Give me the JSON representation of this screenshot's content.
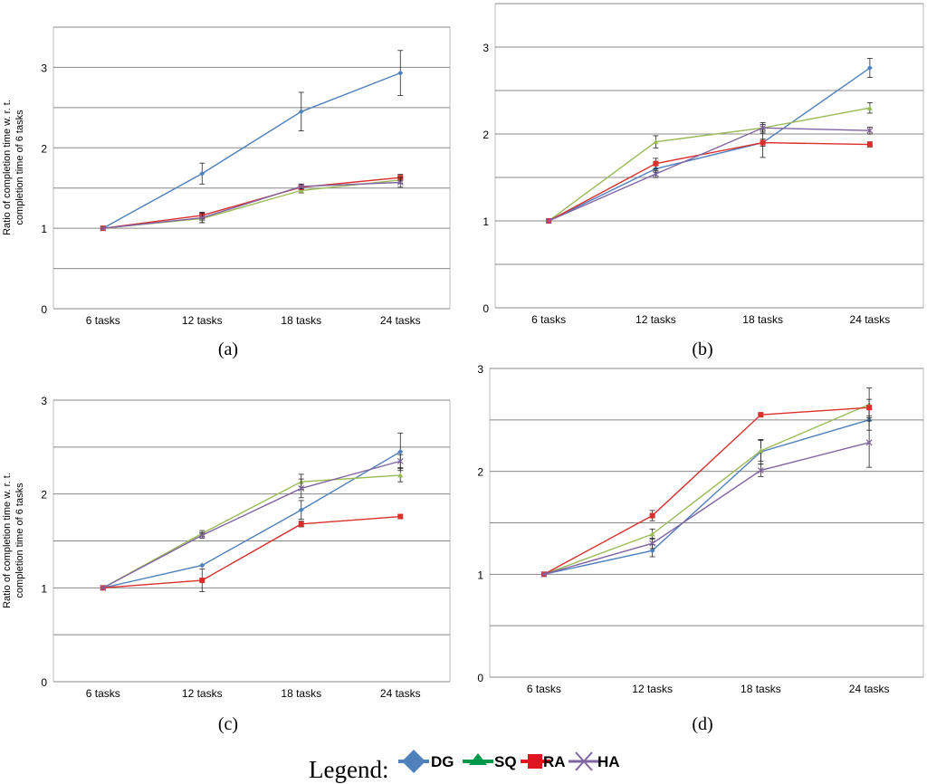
{
  "chart_data": [
    {
      "type": "line",
      "panel_label": "(a)",
      "ylabel_line1": "Ratio of completion time w. r. t.",
      "ylabel_line2": "completion time of 6 tasks",
      "categories": [
        "6 tasks",
        "12 tasks",
        "18 tasks",
        "24 tasks"
      ],
      "ylim": [
        0,
        3.5
      ],
      "yticks": [
        0,
        0.5,
        1,
        1.5,
        2,
        2.5,
        3,
        3.5
      ],
      "ytick_labels": [
        "0",
        "",
        "1",
        "",
        "2",
        "",
        "3",
        ""
      ],
      "series": [
        {
          "name": "DG",
          "values": [
            1.0,
            1.68,
            2.45,
            2.93
          ],
          "err": [
            0,
            0.13,
            0.24,
            0.28
          ]
        },
        {
          "name": "SQ",
          "values": [
            1.0,
            1.12,
            1.47,
            1.6
          ],
          "err": [
            0,
            0.05,
            0.03,
            0.04
          ]
        },
        {
          "name": "RA",
          "values": [
            1.0,
            1.16,
            1.51,
            1.63
          ],
          "err": [
            0,
            0.04,
            0.03,
            0.04
          ]
        },
        {
          "name": "HA",
          "values": [
            1.0,
            1.13,
            1.52,
            1.57
          ],
          "err": [
            0,
            0.06,
            0.03,
            0.06
          ]
        }
      ]
    },
    {
      "type": "line",
      "panel_label": "(b)",
      "ylabel_line1": "",
      "ylabel_line2": "",
      "categories": [
        "6 tasks",
        "12 tasks",
        "18 tasks",
        "24 tasks"
      ],
      "ylim": [
        0,
        3.5
      ],
      "yticks": [
        0,
        0.5,
        1,
        1.5,
        2,
        2.5,
        3,
        3.5
      ],
      "ytick_labels": [
        "0",
        "",
        "1",
        "",
        "2",
        "",
        "3",
        ""
      ],
      "series": [
        {
          "name": "DG",
          "values": [
            1.0,
            1.6,
            1.9,
            2.76
          ],
          "err": [
            0,
            0.04,
            0.17,
            0.11
          ]
        },
        {
          "name": "SQ",
          "values": [
            1.0,
            1.91,
            2.07,
            2.3
          ],
          "err": [
            0,
            0.07,
            0.06,
            0.06
          ]
        },
        {
          "name": "RA",
          "values": [
            1.0,
            1.66,
            1.9,
            1.88
          ],
          "err": [
            0,
            0.06,
            0.04,
            0.03
          ]
        },
        {
          "name": "HA",
          "values": [
            1.0,
            1.54,
            2.07,
            2.04
          ],
          "err": [
            0,
            0.04,
            0.04,
            0.04
          ]
        }
      ]
    },
    {
      "type": "line",
      "panel_label": "(c)",
      "ylabel_line1": "Ratio of completion time w. r. t.",
      "ylabel_line2": "completion time of 6 tasks",
      "categories": [
        "6 tasks",
        "12 tasks",
        "18 tasks",
        "24 tasks"
      ],
      "ylim": [
        0,
        3
      ],
      "yticks": [
        0,
        0.5,
        1,
        1.5,
        2,
        2.5,
        3
      ],
      "ytick_labels": [
        "0",
        "",
        "1",
        "",
        "2",
        "",
        "3"
      ],
      "series": [
        {
          "name": "DG",
          "values": [
            1.0,
            1.24,
            1.83,
            2.45
          ],
          "err": [
            0,
            0,
            0.1,
            0.2
          ]
        },
        {
          "name": "SQ",
          "values": [
            1.0,
            1.58,
            2.13,
            2.2
          ],
          "err": [
            0,
            0.03,
            0.08,
            0.07
          ]
        },
        {
          "name": "RA",
          "values": [
            1.0,
            1.08,
            1.68,
            1.76
          ],
          "err": [
            0,
            0.12,
            0.03,
            0
          ]
        },
        {
          "name": "HA",
          "values": [
            1.0,
            1.56,
            2.06,
            2.35
          ],
          "err": [
            0,
            0.03,
            0.1,
            0.07
          ]
        }
      ]
    },
    {
      "type": "line",
      "panel_label": "(d)",
      "ylabel_line1": "",
      "ylabel_line2": "",
      "categories": [
        "6 tasks",
        "12 tasks",
        "18 tasks",
        "24 tasks"
      ],
      "ylim": [
        0,
        3
      ],
      "yticks": [
        0,
        0.5,
        1,
        1.5,
        2,
        2.5,
        3
      ],
      "ytick_labels": [
        "0",
        "",
        "1",
        "",
        "2",
        "",
        "3"
      ],
      "series": [
        {
          "name": "DG",
          "values": [
            1.0,
            1.23,
            2.19,
            2.5
          ],
          "err": [
            0,
            0.06,
            0.12,
            0.1
          ]
        },
        {
          "name": "SQ",
          "values": [
            1.0,
            1.39,
            2.2,
            2.65
          ],
          "err": [
            0,
            0.05,
            0.1,
            0.16
          ]
        },
        {
          "name": "RA",
          "values": [
            1.0,
            1.57,
            2.55,
            2.62
          ],
          "err": [
            0,
            0.05,
            0.02,
            0.08
          ]
        },
        {
          "name": "HA",
          "values": [
            1.0,
            1.3,
            2.01,
            2.28
          ],
          "err": [
            0,
            0.05,
            0.06,
            0.24
          ]
        }
      ]
    }
  ],
  "legend": {
    "title": "Legend:",
    "entries": [
      {
        "name": "DG",
        "marker": "diamond"
      },
      {
        "name": "SQ",
        "marker": "triangle"
      },
      {
        "name": "RA",
        "marker": "square"
      },
      {
        "name": "HA",
        "marker": "cross"
      }
    ]
  },
  "colors": {
    "DG": "#4f81bd",
    "SQ": "#9bbb59",
    "RA": "#d9302c",
    "HA": "#8064a2",
    "legend_SQ": "#00994c",
    "legend_RA": "#e0141e",
    "gridline": "#888888",
    "errorbar": "#222222"
  }
}
